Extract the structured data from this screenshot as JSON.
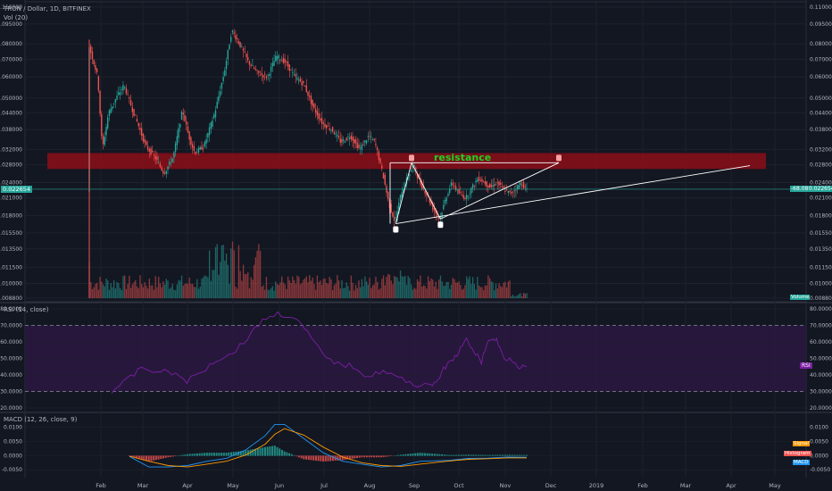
{
  "header": {
    "symbol_line": "TRON / Dollar, 1D, BITFINEX",
    "volume_label": "Vol (20)",
    "rsi_label": "RSI (14, close)",
    "macd_label": "MACD (12, 26, close, 9)"
  },
  "annotations": {
    "resistance_label": "resistance",
    "price_tag": "0.022654",
    "change_tag": "-68.08%",
    "volume_tag": "Volume",
    "rsi_tag": "RSI",
    "macd_signal_tag": "Signal",
    "macd_hist_tag": "Histogram",
    "macd_tag": "MACD"
  },
  "colors": {
    "background": "#131722",
    "up": "#26a69a",
    "down": "#ef5350",
    "resistance_zone": "#8b0e17",
    "resistance_text": "#22d022",
    "rsi_line": "#7b1fa2",
    "rsi_band": "#2a1740",
    "macd_line": "#2196f3",
    "signal_line": "#ff9800"
  },
  "chart_data": [
    {
      "type": "candlestick",
      "title": "TRON / Dollar, 1D, BITFINEX",
      "scale": "log",
      "price_axis_ticks": [
        "0.110000",
        "0.095000",
        "0.080000",
        "0.070000",
        "0.060000",
        "0.050000",
        "0.044000",
        "0.038000",
        "0.032000",
        "0.028000",
        "0.024000",
        "0.021000",
        "0.018000",
        "0.015500",
        "0.013500",
        "0.011500",
        "0.010000",
        "0.008800"
      ],
      "time_axis_ticks": [
        "Feb",
        "Mar",
        "Apr",
        "May",
        "Jun",
        "Jul",
        "Aug",
        "Sep",
        "Oct",
        "Nov",
        "Dec",
        "2019",
        "Feb",
        "Mar",
        "Apr",
        "May"
      ],
      "ylim": [
        0.0088,
        0.11
      ],
      "last_price": 0.022654,
      "close_series": [
        {
          "x": "Jan 28",
          "y": 0.08
        },
        {
          "x": "Feb 3",
          "y": 0.06
        },
        {
          "x": "Feb 6",
          "y": 0.032
        },
        {
          "x": "Feb 10",
          "y": 0.044
        },
        {
          "x": "Feb 15",
          "y": 0.05
        },
        {
          "x": "Feb 20",
          "y": 0.056
        },
        {
          "x": "Feb 25",
          "y": 0.046
        },
        {
          "x": "Mar 1",
          "y": 0.04
        },
        {
          "x": "Mar 6",
          "y": 0.033
        },
        {
          "x": "Mar 12",
          "y": 0.03
        },
        {
          "x": "Mar 18",
          "y": 0.026
        },
        {
          "x": "Mar 24",
          "y": 0.03
        },
        {
          "x": "Mar 30",
          "y": 0.045
        },
        {
          "x": "Apr 3",
          "y": 0.036
        },
        {
          "x": "Apr 7",
          "y": 0.031
        },
        {
          "x": "Apr 13",
          "y": 0.033
        },
        {
          "x": "Apr 20",
          "y": 0.044
        },
        {
          "x": "Apr 26",
          "y": 0.062
        },
        {
          "x": "May 1",
          "y": 0.09
        },
        {
          "x": "May 6",
          "y": 0.08
        },
        {
          "x": "May 12",
          "y": 0.068
        },
        {
          "x": "May 18",
          "y": 0.062
        },
        {
          "x": "May 24",
          "y": 0.06
        },
        {
          "x": "May 30",
          "y": 0.072
        },
        {
          "x": "Jun 5",
          "y": 0.068
        },
        {
          "x": "Jun 11",
          "y": 0.06
        },
        {
          "x": "Jun 17",
          "y": 0.056
        },
        {
          "x": "Jun 23",
          "y": 0.046
        },
        {
          "x": "Jun 29",
          "y": 0.04
        },
        {
          "x": "Jul 5",
          "y": 0.038
        },
        {
          "x": "Jul 11",
          "y": 0.034
        },
        {
          "x": "Jul 17",
          "y": 0.036
        },
        {
          "x": "Jul 23",
          "y": 0.032
        },
        {
          "x": "Jul 29",
          "y": 0.036
        },
        {
          "x": "Aug 2",
          "y": 0.034
        },
        {
          "x": "Aug 7",
          "y": 0.026
        },
        {
          "x": "Aug 11",
          "y": 0.02
        },
        {
          "x": "Aug 15",
          "y": 0.017
        },
        {
          "x": "Aug 19",
          "y": 0.022
        },
        {
          "x": "Aug 23",
          "y": 0.025
        },
        {
          "x": "Aug 27",
          "y": 0.028
        },
        {
          "x": "Aug 31",
          "y": 0.024
        },
        {
          "x": "Sep 4",
          "y": 0.022
        },
        {
          "x": "Sep 9",
          "y": 0.019
        },
        {
          "x": "Sep 13",
          "y": 0.0175
        },
        {
          "x": "Sep 17",
          "y": 0.021
        },
        {
          "x": "Sep 21",
          "y": 0.024
        },
        {
          "x": "Sep 25",
          "y": 0.022
        },
        {
          "x": "Sep 30",
          "y": 0.021
        },
        {
          "x": "Oct 4",
          "y": 0.023
        },
        {
          "x": "Oct 8",
          "y": 0.025
        },
        {
          "x": "Oct 12",
          "y": 0.024
        },
        {
          "x": "Oct 16",
          "y": 0.023
        },
        {
          "x": "Oct 20",
          "y": 0.024
        },
        {
          "x": "Oct 25",
          "y": 0.0225
        },
        {
          "x": "Oct 29",
          "y": 0.0218
        },
        {
          "x": "Nov 2",
          "y": 0.023
        },
        {
          "x": "Nov 5",
          "y": 0.024
        },
        {
          "x": "Nov 8",
          "y": 0.0226
        }
      ],
      "resistance_zone": [
        0.027,
        0.031
      ],
      "triangle_top": 0.0285,
      "triangle_low_1": {
        "x": "Aug 15",
        "y": 0.0168
      },
      "triangle_low_2": {
        "x": "Sep 13",
        "y": 0.0175
      }
    },
    {
      "type": "line",
      "title": "RSI (14, close)",
      "axis_ticks": [
        "80.0000",
        "70.0000",
        "60.0000",
        "50.0000",
        "40.0000",
        "30.0000",
        "20.0000"
      ],
      "ylim": [
        20,
        80
      ],
      "bands": [
        30,
        70
      ],
      "values": [
        [
          0,
          30
        ],
        [
          4,
          35
        ],
        [
          8,
          46
        ],
        [
          12,
          42
        ],
        [
          16,
          40
        ],
        [
          20,
          38
        ],
        [
          24,
          42
        ],
        [
          28,
          48
        ],
        [
          32,
          55
        ],
        [
          36,
          62
        ],
        [
          40,
          72
        ],
        [
          44,
          79
        ],
        [
          48,
          75
        ],
        [
          52,
          64
        ],
        [
          56,
          54
        ],
        [
          60,
          46
        ],
        [
          64,
          44
        ],
        [
          68,
          41
        ],
        [
          72,
          42
        ],
        [
          76,
          37
        ],
        [
          80,
          36
        ],
        [
          84,
          34
        ],
        [
          86,
          36
        ],
        [
          88,
          43
        ],
        [
          90,
          47
        ],
        [
          92,
          56
        ],
        [
          94,
          60
        ],
        [
          96,
          54
        ],
        [
          98,
          50
        ],
        [
          100,
          61
        ],
        [
          102,
          60
        ],
        [
          104,
          52
        ],
        [
          106,
          49
        ],
        [
          108,
          44
        ],
        [
          110,
          47
        ]
      ]
    },
    {
      "type": "line",
      "title": "MACD (12, 26, close, 9)",
      "axis_ticks": [
        "0.0100",
        "0.0050",
        "0.0000",
        "-0.0050"
      ],
      "ylim": [
        -0.0065,
        0.013
      ],
      "series": [
        {
          "name": "MACD",
          "values": [
            [
              0,
              -0.0003
            ],
            [
              4,
              -0.004
            ],
            [
              8,
              -0.004
            ],
            [
              12,
              -0.0035
            ],
            [
              16,
              -0.002
            ],
            [
              20,
              -0.001
            ],
            [
              24,
              0.002
            ],
            [
              28,
              0.007
            ],
            [
              30,
              0.011
            ],
            [
              32,
              0.011
            ],
            [
              36,
              0.006
            ],
            [
              40,
              0.001
            ],
            [
              44,
              -0.002
            ],
            [
              48,
              -0.003
            ],
            [
              52,
              -0.004
            ],
            [
              56,
              -0.0035
            ],
            [
              60,
              -0.002
            ],
            [
              64,
              -0.0018
            ],
            [
              66,
              -0.0017
            ],
            [
              70,
              -0.001
            ],
            [
              74,
              -0.0009
            ],
            [
              78,
              -0.0005
            ],
            [
              82,
              -0.0006
            ]
          ]
        },
        {
          "name": "Signal",
          "values": [
            [
              0,
              -0.0002
            ],
            [
              4,
              -0.002
            ],
            [
              8,
              -0.0035
            ],
            [
              12,
              -0.004
            ],
            [
              16,
              -0.003
            ],
            [
              20,
              -0.002
            ],
            [
              24,
              0.0002
            ],
            [
              28,
              0.004
            ],
            [
              30,
              0.0075
            ],
            [
              32,
              0.0095
            ],
            [
              36,
              0.0072
            ],
            [
              40,
              0.003
            ],
            [
              44,
              -0.0005
            ],
            [
              48,
              -0.0025
            ],
            [
              52,
              -0.0035
            ],
            [
              56,
              -0.0038
            ],
            [
              60,
              -0.003
            ],
            [
              64,
              -0.0023
            ],
            [
              66,
              -0.0019
            ],
            [
              70,
              -0.0013
            ],
            [
              74,
              -0.0011
            ],
            [
              78,
              -0.0008
            ],
            [
              82,
              -0.0008
            ]
          ]
        }
      ]
    }
  ]
}
